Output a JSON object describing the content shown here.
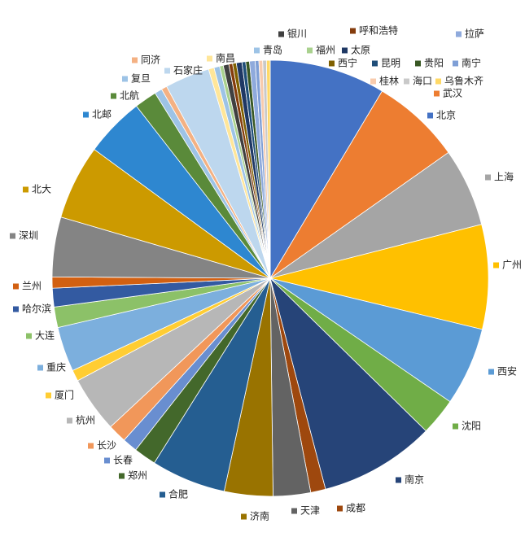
{
  "chart_data": {
    "type": "pie",
    "categories": [
      "北京",
      "武汉",
      "上海",
      "广州",
      "西安",
      "沈阳",
      "南京",
      "成都",
      "天津",
      "济南",
      "合肥",
      "郑州",
      "长春",
      "长沙",
      "杭州",
      "厦门",
      "重庆",
      "大连",
      "哈尔滨",
      "兰州",
      "深圳",
      "北大",
      "北邮",
      "北航",
      "复旦",
      "同济",
      "石家庄",
      "南昌",
      "青岛",
      "福州",
      "银川",
      "呼和浩特",
      "西宁",
      "太原",
      "昆明",
      "贵阳",
      "拉萨",
      "南宁",
      "桂林",
      "海口",
      "乌鲁木齐"
    ],
    "values": [
      31,
      24,
      21,
      28,
      21,
      10,
      31,
      4,
      10,
      13,
      20,
      6,
      4,
      5,
      15,
      3,
      12,
      5.5,
      5,
      3,
      16,
      20,
      16,
      6,
      2,
      1.5,
      12,
      1.5,
      1.5,
      1,
      1.5,
      1,
      1,
      1.5,
      1,
      1,
      1.5,
      1,
      1,
      1,
      1
    ],
    "colors": [
      "#4472c4",
      "#ed7d31",
      "#a5a5a5",
      "#ffc000",
      "#5b9bd5",
      "#70ad47",
      "#264478",
      "#9e480e",
      "#636363",
      "#997300",
      "#255e91",
      "#43682b",
      "#698ed0",
      "#f1975a",
      "#b7b7b7",
      "#ffcd33",
      "#7cafdd",
      "#8cc168",
      "#335aa1",
      "#d26012",
      "#848484",
      "#cc9a00",
      "#2e87d0",
      "#5a8a3a",
      "#9dc3e6",
      "#f4b183",
      "#bdd7ee",
      "#ffe699",
      "#9dc3e6",
      "#a9d18e",
      "#404040",
      "#843c0c",
      "#7f6000",
      "#1f3864",
      "#1f4e79",
      "#385723",
      "#8faadc",
      "#7f9fd6",
      "#f8cbad",
      "#c9c9c9",
      "#ffd966"
    ]
  }
}
